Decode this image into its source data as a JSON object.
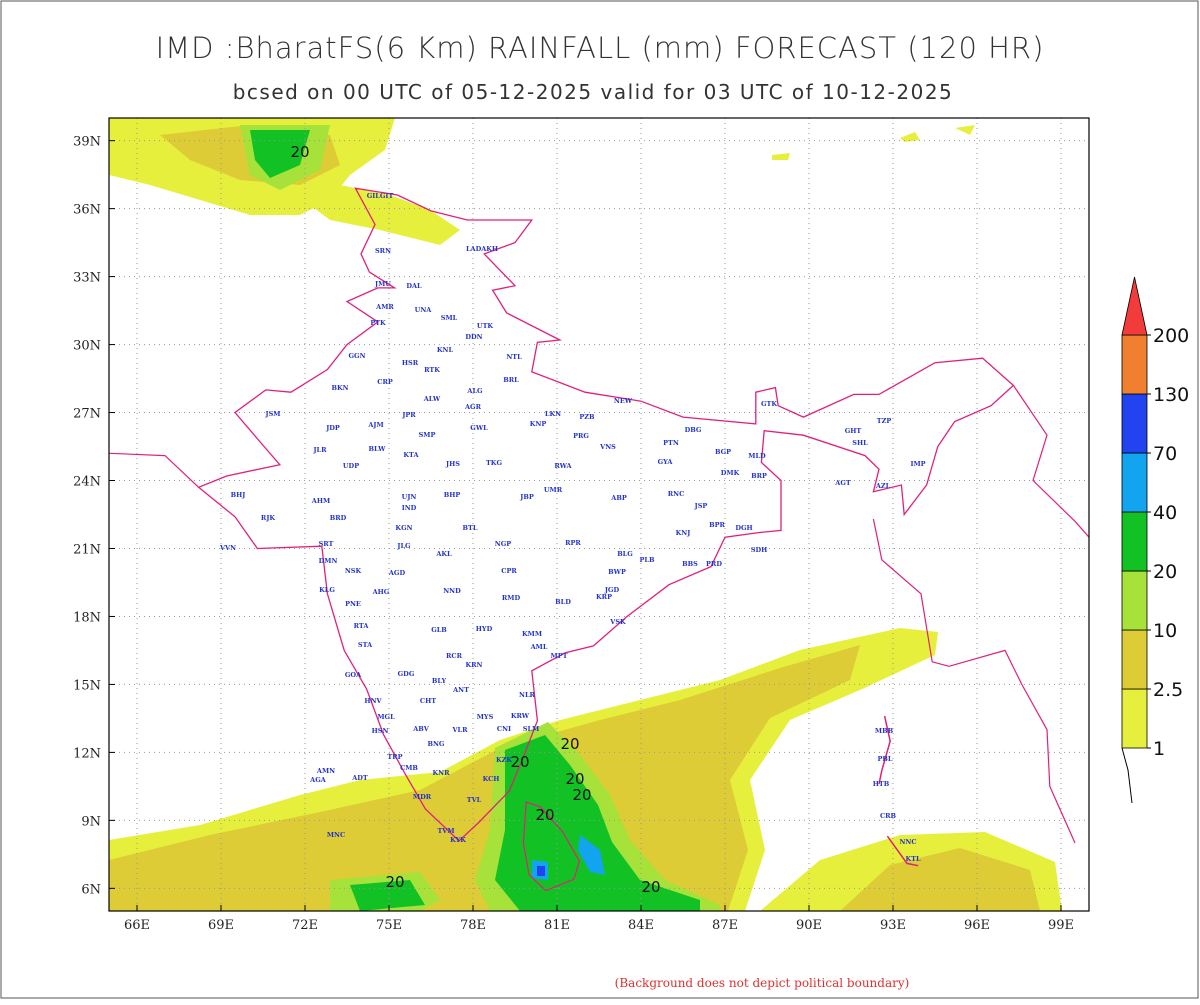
{
  "header": {
    "title": "IMD :BharatFS(6 Km) RAINFALL (mm) FORECAST (120 HR)",
    "subtitle": "bcsed on 00 UTC of 05-12-2025 valid for 03 UTC of 10-12-2025"
  },
  "map": {
    "xlim": [
      65,
      100
    ],
    "ylim": [
      5,
      40
    ],
    "xticks": [
      {
        "value": 66,
        "label": "66E"
      },
      {
        "value": 69,
        "label": "69E"
      },
      {
        "value": 72,
        "label": "72E"
      },
      {
        "value": 75,
        "label": "75E"
      },
      {
        "value": 78,
        "label": "78E"
      },
      {
        "value": 81,
        "label": "81E"
      },
      {
        "value": 84,
        "label": "84E"
      },
      {
        "value": 87,
        "label": "87E"
      },
      {
        "value": 90,
        "label": "90E"
      },
      {
        "value": 93,
        "label": "93E"
      },
      {
        "value": 96,
        "label": "96E"
      },
      {
        "value": 99,
        "label": "99E"
      }
    ],
    "yticks": [
      {
        "value": 6,
        "label": "6N"
      },
      {
        "value": 9,
        "label": "9N"
      },
      {
        "value": 12,
        "label": "12N"
      },
      {
        "value": 15,
        "label": "15N"
      },
      {
        "value": 18,
        "label": "18N"
      },
      {
        "value": 21,
        "label": "21N"
      },
      {
        "value": 24,
        "label": "24N"
      },
      {
        "value": 27,
        "label": "27N"
      },
      {
        "value": 30,
        "label": "30N"
      },
      {
        "value": 33,
        "label": "33N"
      },
      {
        "value": 36,
        "label": "36N"
      },
      {
        "value": 39,
        "label": "39N"
      }
    ],
    "grid": true,
    "boundary_color": "#e0207a",
    "station_labels": [
      "GILGIT",
      "SRN",
      "LADAKH",
      "JMU",
      "DAL",
      "AMR",
      "UNA",
      "PTK",
      "SML",
      "UTK",
      "DDN",
      "GGN",
      "KNL",
      "NTL",
      "HSR",
      "RTK",
      "BKN",
      "CRP",
      "ALG",
      "BRL",
      "JSM",
      "ALW",
      "AGR",
      "NEW",
      "JPR",
      "LKN",
      "PZB",
      "JDP",
      "AJM",
      "GWL",
      "KNP",
      "PRG",
      "VNS",
      "PTN",
      "DBG",
      "BGP",
      "GTK",
      "JLR",
      "BLW",
      "KTA",
      "SMP",
      "TKG",
      "JHS",
      "RWA",
      "GYA",
      "MLD",
      "GHT",
      "TZP",
      "UDP",
      "BRP",
      "DMK",
      "SHL",
      "IMP",
      "AGT",
      "AZL",
      "BHJ",
      "AHM",
      "UJN",
      "BHP",
      "JBP",
      "UMR",
      "RNC",
      "ABP",
      "JSP",
      "KNJ",
      "BPR",
      "DGH",
      "SDH",
      "RJK",
      "VVN",
      "BRD",
      "IND",
      "KGN",
      "BTL",
      "NGP",
      "RPR",
      "BLG",
      "PLB",
      "BBS",
      "PRD",
      "SRT",
      "JLG",
      "AKL",
      "DMN",
      "NSK",
      "AGD",
      "CPR",
      "BWP",
      "JGD",
      "KRP",
      "AHG",
      "PNE",
      "NND",
      "RMD",
      "BLD",
      "KLG",
      "RTA",
      "GLB",
      "HYD",
      "VSK",
      "KMM",
      "AML",
      "STA",
      "RCR",
      "KRN",
      "MPT",
      "GOA",
      "GDG",
      "BLY",
      "ANT",
      "NLR",
      "HNV",
      "CHT",
      "KRW",
      "MGL",
      "HSN",
      "ABV",
      "MYS",
      "BNG",
      "VLR",
      "CNI",
      "SLM",
      "KZK",
      "CMB",
      "KNR",
      "TRP",
      "KCH",
      "MDR",
      "TVL",
      "TVM",
      "KYK",
      "AMN",
      "AGA",
      "ADT",
      "MNC",
      "MBB",
      "PBL",
      "HTB",
      "CRB",
      "NNC",
      "KTL"
    ],
    "contour_labels": [
      20,
      20,
      20,
      20,
      20,
      20,
      20,
      20
    ]
  },
  "colorbar": {
    "levels": [
      1,
      2.5,
      10,
      20,
      40,
      70,
      130,
      200
    ],
    "colors": [
      "#e6f03c",
      "#ddcc36",
      "#a6e23a",
      "#12c224",
      "#12a4ee",
      "#2244f0",
      "#f08030",
      "#f23c3c"
    ]
  },
  "footnote": "(Background does not depict political boundary)"
}
